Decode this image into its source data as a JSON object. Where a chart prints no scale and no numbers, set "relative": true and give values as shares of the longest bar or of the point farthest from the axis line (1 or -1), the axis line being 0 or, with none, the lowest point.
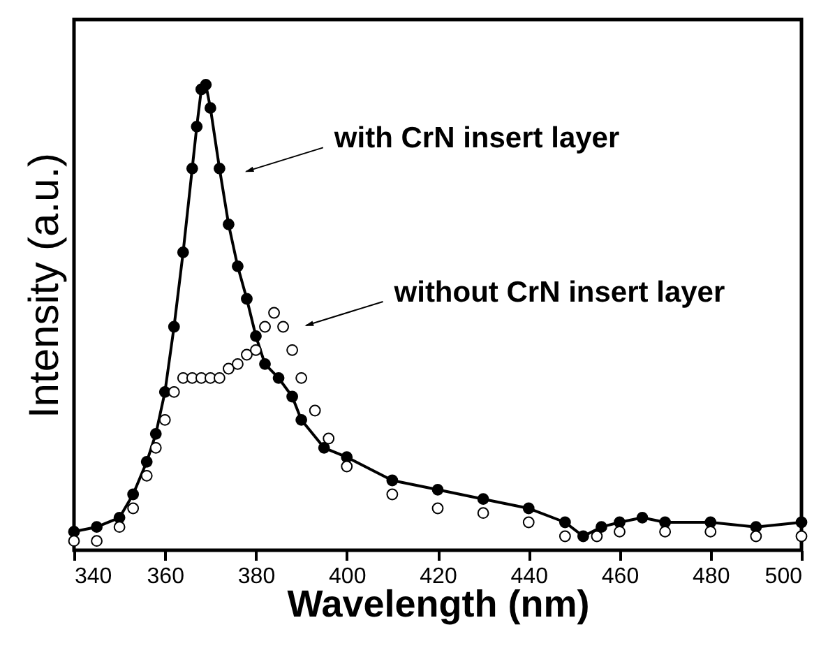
{
  "chart_data": {
    "type": "line",
    "xlabel": "Wavelength (nm)",
    "ylabel": "Intensity (a.u.)",
    "relative": true,
    "xlim": [
      340,
      500
    ],
    "xticks": [
      340,
      360,
      380,
      400,
      420,
      440,
      460,
      480,
      500
    ],
    "tick_labels": "x",
    "marker": "circle",
    "annotations": [
      "with CrN insert layer",
      "without CrN insert layer"
    ],
    "series": [
      {
        "color": "#000000",
        "x": [
          340,
          345,
          350,
          353,
          356,
          358,
          360,
          362,
          364,
          366,
          367,
          368,
          369,
          370,
          372,
          374,
          376,
          378,
          380,
          382,
          385,
          388,
          390,
          395,
          400,
          410,
          420,
          430,
          440,
          448,
          452,
          456,
          460,
          465,
          470,
          480,
          490,
          500
        ],
        "values": [
          0.04,
          0.05,
          0.07,
          0.12,
          0.19,
          0.25,
          0.34,
          0.48,
          0.64,
          0.82,
          0.91,
          0.99,
          1,
          0.95,
          0.82,
          0.7,
          0.61,
          0.54,
          0.46,
          0.4,
          0.37,
          0.33,
          0.28,
          0.22,
          0.2,
          0.15,
          0.13,
          0.11,
          0.09,
          0.06,
          0.03,
          0.05,
          0.06,
          0.07,
          0.06,
          0.06,
          0.05,
          0.06
        ]
      },
      {
        "type": "scatter",
        "color": "#ffffff",
        "x": [
          340,
          345,
          350,
          353,
          356,
          358,
          360,
          362,
          364,
          366,
          368,
          370,
          372,
          374,
          376,
          378,
          380,
          382,
          384,
          386,
          388,
          390,
          393,
          396,
          400,
          410,
          420,
          430,
          440,
          448,
          455,
          460,
          470,
          480,
          490,
          500
        ],
        "values": [
          0.02,
          0.02,
          0.05,
          0.09,
          0.16,
          0.22,
          0.28,
          0.34,
          0.37,
          0.37,
          0.37,
          0.37,
          0.37,
          0.39,
          0.4,
          0.42,
          0.43,
          0.48,
          0.51,
          0.48,
          0.43,
          0.37,
          0.3,
          0.24,
          0.18,
          0.12,
          0.09,
          0.08,
          0.06,
          0.03,
          0.03,
          0.04,
          0.04,
          0.04,
          0.03,
          0.03
        ]
      }
    ]
  }
}
